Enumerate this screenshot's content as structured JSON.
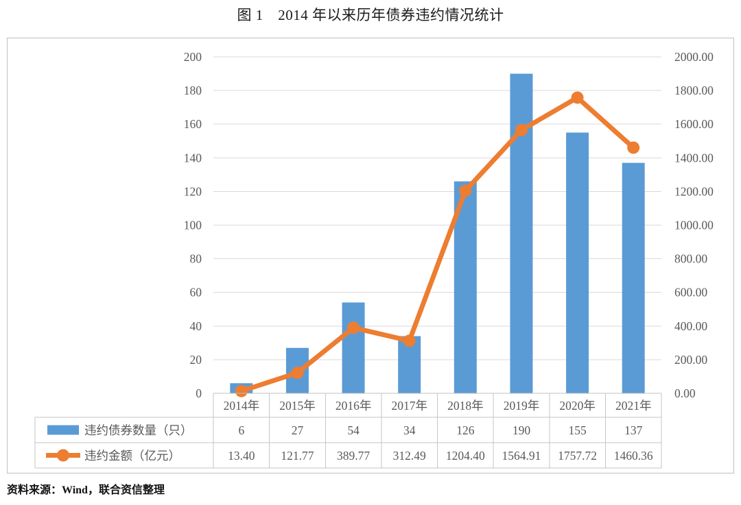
{
  "page": {
    "title": "图 1　2014 年以来历年债券违约情况统计",
    "source_note": "资料来源：Wind，联合资信整理"
  },
  "colors": {
    "bar": "#5B9BD5",
    "line": "#ED7D31",
    "gridline": "#D9D9D9",
    "axis_line": "#BFBFBF",
    "table_border": "#C6C6C6",
    "frame_border": "#BFBFBF",
    "tick_text": "#595959",
    "title_text": "#1A1A1A"
  },
  "chart_data": {
    "type": "bar+line",
    "title": "图 1　2014 年以来历年债券违约情况统计",
    "categories": [
      "2014年",
      "2015年",
      "2016年",
      "2017年",
      "2018年",
      "2019年",
      "2020年",
      "2021年"
    ],
    "series": [
      {
        "name": "违约债券数量（只）",
        "type": "bar",
        "axis": "left",
        "color": "#5B9BD5",
        "legend_icon": "bar-swatch-icon",
        "values": [
          6,
          27,
          54,
          34,
          126,
          190,
          155,
          137
        ],
        "display": [
          "6",
          "27",
          "54",
          "34",
          "126",
          "190",
          "155",
          "137"
        ]
      },
      {
        "name": "违约金额（亿元）",
        "type": "line",
        "axis": "right",
        "color": "#ED7D31",
        "legend_icon": "line-marker-icon",
        "values": [
          13.4,
          121.77,
          389.77,
          312.49,
          1204.4,
          1564.91,
          1757.72,
          1460.36
        ],
        "display": [
          "13.40",
          "121.77",
          "389.77",
          "312.49",
          "1204.40",
          "1564.91",
          "1757.72",
          "1460.36"
        ]
      }
    ],
    "left_axis": {
      "min": 0,
      "max": 200,
      "step": 20,
      "tick_labels": [
        "0",
        "20",
        "40",
        "60",
        "80",
        "100",
        "120",
        "140",
        "160",
        "180",
        "200"
      ]
    },
    "right_axis": {
      "min": 0,
      "max": 2000,
      "step": 200,
      "tick_labels": [
        "0.00",
        "200.00",
        "400.00",
        "600.00",
        "800.00",
        "1000.00",
        "1200.00",
        "1400.00",
        "1600.00",
        "1800.00",
        "2000.00"
      ]
    },
    "grid": "horizontal",
    "legend_position": "data-table-bottom",
    "source": "资料来源：Wind，联合资信整理"
  }
}
